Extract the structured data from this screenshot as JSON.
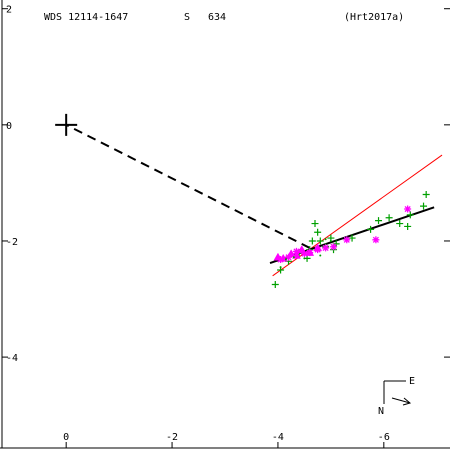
{
  "header": {
    "wds_id": "WDS 12114-1647",
    "code": "S",
    "number": "634",
    "reference": "(Hrt2017a)"
  },
  "compass": {
    "north_label": "N",
    "east_label": "E"
  },
  "chart_data": {
    "type": "scatter",
    "title": "",
    "xlabel": "",
    "ylabel": "",
    "xlim": [
      1.25,
      -7.25
    ],
    "ylim": [
      -5.6,
      2.15
    ],
    "x_ticks": [
      {
        "value": -6,
        "label": "-6"
      },
      {
        "value": -4,
        "label": "-4"
      },
      {
        "value": -2,
        "label": "-2"
      },
      {
        "value": 0,
        "label": "0"
      }
    ],
    "y_ticks": [
      {
        "value": 2,
        "label": "2"
      },
      {
        "value": 0,
        "label": "0"
      },
      {
        "value": -2,
        "label": "-2"
      },
      {
        "value": -4,
        "label": "-4"
      }
    ],
    "primary": {
      "x": 0,
      "y": 0
    },
    "series": [
      {
        "marker": "plus",
        "color": "#00a000",
        "points": [
          [
            -6.8,
            -1.2
          ],
          [
            -6.75,
            -1.4
          ],
          [
            -6.5,
            -1.55
          ],
          [
            -6.45,
            -1.75
          ],
          [
            -6.3,
            -1.7
          ],
          [
            -6.1,
            -1.6
          ],
          [
            -5.9,
            -1.65
          ],
          [
            -5.75,
            -1.8
          ],
          [
            -5.4,
            -1.95
          ],
          [
            -5.1,
            -2.05
          ],
          [
            -5.05,
            -2.15
          ],
          [
            -5.0,
            -1.95
          ],
          [
            -4.9,
            -2.1
          ],
          [
            -4.8,
            -2.0
          ],
          [
            -4.75,
            -1.85
          ],
          [
            -4.7,
            -1.7
          ],
          [
            -4.65,
            -2.0
          ],
          [
            -4.6,
            -2.15
          ],
          [
            -4.55,
            -2.3
          ],
          [
            -4.4,
            -2.2
          ],
          [
            -4.2,
            -2.35
          ],
          [
            -4.05,
            -2.5
          ],
          [
            -3.95,
            -2.75
          ]
        ]
      },
      {
        "marker": "asterisk",
        "color": "#ff00ff",
        "points": [
          [
            -6.45,
            -1.45
          ],
          [
            -5.85,
            -1.98
          ],
          [
            -5.3,
            -1.98
          ],
          [
            -5.05,
            -2.1
          ],
          [
            -4.9,
            -2.12
          ],
          [
            -4.75,
            -2.15
          ],
          [
            -4.6,
            -2.2
          ],
          [
            -4.5,
            -2.22
          ],
          [
            -4.35,
            -2.18
          ],
          [
            -4.2,
            -2.28
          ],
          [
            -4.05,
            -2.32
          ]
        ]
      },
      {
        "marker": "triangle",
        "color": "#ff00ff",
        "points": [
          [
            -4.75,
            -2.12
          ],
          [
            -4.6,
            -2.2
          ],
          [
            -4.45,
            -2.15
          ],
          [
            -4.35,
            -2.25
          ],
          [
            -4.25,
            -2.22
          ],
          [
            -4.1,
            -2.3
          ],
          [
            -4.0,
            -2.28
          ]
        ]
      },
      {
        "marker": "dot",
        "color": "#00a000",
        "points": [
          [
            -5.0,
            -2.0
          ],
          [
            -4.9,
            -1.97
          ],
          [
            -4.8,
            -2.25
          ],
          [
            -4.5,
            -2.3
          ],
          [
            -4.3,
            -2.28
          ],
          [
            -4.15,
            -2.32
          ],
          [
            -4.05,
            -2.45
          ]
        ]
      }
    ],
    "lines": [
      {
        "style": "red-thin",
        "color": "#ff0000",
        "from": [
          -7.1,
          -0.52
        ],
        "to": [
          -3.9,
          -2.6
        ]
      },
      {
        "style": "black-thick",
        "color": "#000000",
        "from": [
          -6.95,
          -1.42
        ],
        "to": [
          -3.85,
          -2.38
        ]
      },
      {
        "style": "dashed",
        "color": "#000000",
        "from": [
          -4.6,
          -2.12
        ],
        "to": [
          0,
          0
        ]
      }
    ]
  }
}
